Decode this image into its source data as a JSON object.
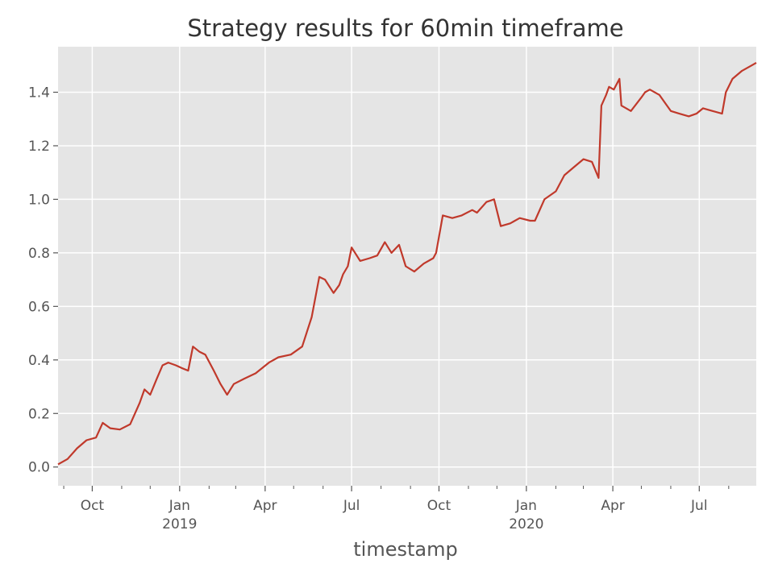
{
  "chart_data": {
    "type": "line",
    "title": "Strategy results for 60min timeframe",
    "xlabel": "timestamp",
    "ylabel": "",
    "xlim": [
      "2018-08-26",
      "2020-08-30"
    ],
    "ylim": [
      -0.07,
      1.57
    ],
    "grid": true,
    "line_color": "#c0392b",
    "plot_bg": "#e5e5e5",
    "yticks": [
      {
        "value": 0.0,
        "label": "0.0"
      },
      {
        "value": 0.2,
        "label": "0.2"
      },
      {
        "value": 0.4,
        "label": "0.4"
      },
      {
        "value": 0.6,
        "label": "0.6"
      },
      {
        "value": 0.8,
        "label": "0.8"
      },
      {
        "value": 1.0,
        "label": "1.0"
      },
      {
        "value": 1.2,
        "label": "1.2"
      },
      {
        "value": 1.4,
        "label": "1.4"
      }
    ],
    "xticks": [
      {
        "date": "2018-10-01",
        "label": "Oct",
        "sublabel": ""
      },
      {
        "date": "2019-01-01",
        "label": "Jan",
        "sublabel": "2019"
      },
      {
        "date": "2019-04-01",
        "label": "Apr",
        "sublabel": ""
      },
      {
        "date": "2019-07-01",
        "label": "Jul",
        "sublabel": ""
      },
      {
        "date": "2019-10-01",
        "label": "Oct",
        "sublabel": ""
      },
      {
        "date": "2020-01-01",
        "label": "Jan",
        "sublabel": "2020"
      },
      {
        "date": "2020-04-01",
        "label": "Apr",
        "sublabel": ""
      },
      {
        "date": "2020-07-01",
        "label": "Jul",
        "sublabel": ""
      }
    ],
    "minor_ticks": [
      "2018-09-01",
      "2018-11-01",
      "2018-12-01",
      "2019-02-01",
      "2019-03-01",
      "2019-05-01",
      "2019-06-01",
      "2019-08-01",
      "2019-09-01",
      "2019-11-01",
      "2019-12-01",
      "2020-02-01",
      "2020-03-01",
      "2020-05-01",
      "2020-06-01",
      "2020-08-01"
    ],
    "series": [
      {
        "x": [
          "2018-08-26",
          "2018-09-05",
          "2018-09-15",
          "2018-09-25",
          "2018-10-05",
          "2018-10-12",
          "2018-10-20",
          "2018-10-30",
          "2018-11-10",
          "2018-11-20",
          "2018-11-25",
          "2018-12-01",
          "2018-12-08",
          "2018-12-14",
          "2018-12-20",
          "2018-12-28",
          "2019-01-03",
          "2019-01-10",
          "2019-01-15",
          "2019-01-22",
          "2019-01-28",
          "2019-02-06",
          "2019-02-13",
          "2019-02-20",
          "2019-02-27",
          "2019-03-10",
          "2019-03-22",
          "2019-04-05",
          "2019-04-15",
          "2019-04-28",
          "2019-05-10",
          "2019-05-20",
          "2019-05-28",
          "2019-06-03",
          "2019-06-12",
          "2019-06-18",
          "2019-06-22",
          "2019-06-27",
          "2019-07-01",
          "2019-07-10",
          "2019-07-20",
          "2019-07-28",
          "2019-08-05",
          "2019-08-12",
          "2019-08-20",
          "2019-08-27",
          "2019-09-05",
          "2019-09-15",
          "2019-09-25",
          "2019-09-28",
          "2019-10-05",
          "2019-10-15",
          "2019-10-25",
          "2019-11-05",
          "2019-11-10",
          "2019-11-20",
          "2019-11-28",
          "2019-12-05",
          "2019-12-15",
          "2019-12-25",
          "2020-01-05",
          "2020-01-10",
          "2020-01-20",
          "2020-02-01",
          "2020-02-10",
          "2020-02-20",
          "2020-03-01",
          "2020-03-10",
          "2020-03-17",
          "2020-03-20",
          "2020-03-25",
          "2020-03-28",
          "2020-04-02",
          "2020-04-08",
          "2020-04-10",
          "2020-04-20",
          "2020-05-01",
          "2020-05-05",
          "2020-05-10",
          "2020-05-20",
          "2020-06-01",
          "2020-06-10",
          "2020-06-20",
          "2020-06-28",
          "2020-07-05",
          "2020-07-15",
          "2020-07-25",
          "2020-07-29",
          "2020-08-05",
          "2020-08-15",
          "2020-08-25",
          "2020-08-30"
        ],
        "y": [
          0.01,
          0.03,
          0.07,
          0.1,
          0.11,
          0.165,
          0.145,
          0.14,
          0.16,
          0.24,
          0.29,
          0.27,
          0.33,
          0.38,
          0.39,
          0.38,
          0.37,
          0.36,
          0.45,
          0.43,
          0.42,
          0.36,
          0.31,
          0.27,
          0.31,
          0.33,
          0.35,
          0.39,
          0.41,
          0.42,
          0.45,
          0.56,
          0.71,
          0.7,
          0.65,
          0.68,
          0.72,
          0.75,
          0.82,
          0.77,
          0.78,
          0.79,
          0.84,
          0.8,
          0.83,
          0.75,
          0.73,
          0.76,
          0.78,
          0.8,
          0.94,
          0.93,
          0.94,
          0.96,
          0.95,
          0.99,
          1.0,
          0.9,
          0.91,
          0.93,
          0.92,
          0.92,
          1.0,
          1.03,
          1.09,
          1.12,
          1.15,
          1.14,
          1.08,
          1.35,
          1.39,
          1.42,
          1.41,
          1.45,
          1.35,
          1.33,
          1.38,
          1.4,
          1.41,
          1.39,
          1.33,
          1.32,
          1.31,
          1.32,
          1.34,
          1.33,
          1.32,
          1.4,
          1.45,
          1.48,
          1.5,
          1.51
        ]
      }
    ]
  }
}
